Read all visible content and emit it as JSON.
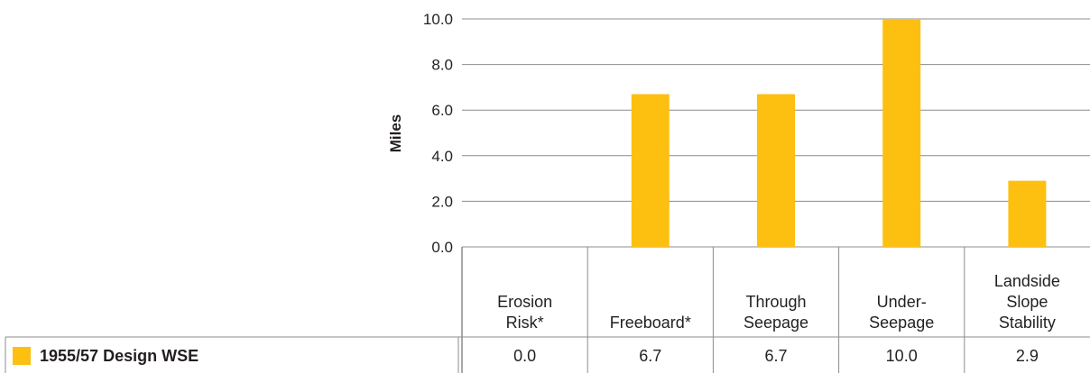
{
  "chart_data": {
    "type": "bar",
    "ylabel": "Miles",
    "ylim": [
      0,
      10
    ],
    "yticks": [
      "0.0",
      "2.0",
      "4.0",
      "6.0",
      "8.0",
      "10.0"
    ],
    "grid": true,
    "legend_position": "bottom-left, in table row",
    "categories": [
      [
        "Erosion",
        "Risk*"
      ],
      [
        "Freeboard*"
      ],
      [
        "Through",
        "Seepage"
      ],
      [
        "Under-",
        "Seepage"
      ],
      [
        "Landside",
        "Slope",
        "Stability"
      ]
    ],
    "series": [
      {
        "name": "1955/57 Design WSE",
        "color": "#fdc010",
        "values": [
          0.0,
          6.7,
          6.7,
          10.0,
          2.9
        ],
        "value_labels": [
          "0.0",
          "6.7",
          "6.7",
          "10.0",
          "2.9"
        ]
      }
    ]
  }
}
